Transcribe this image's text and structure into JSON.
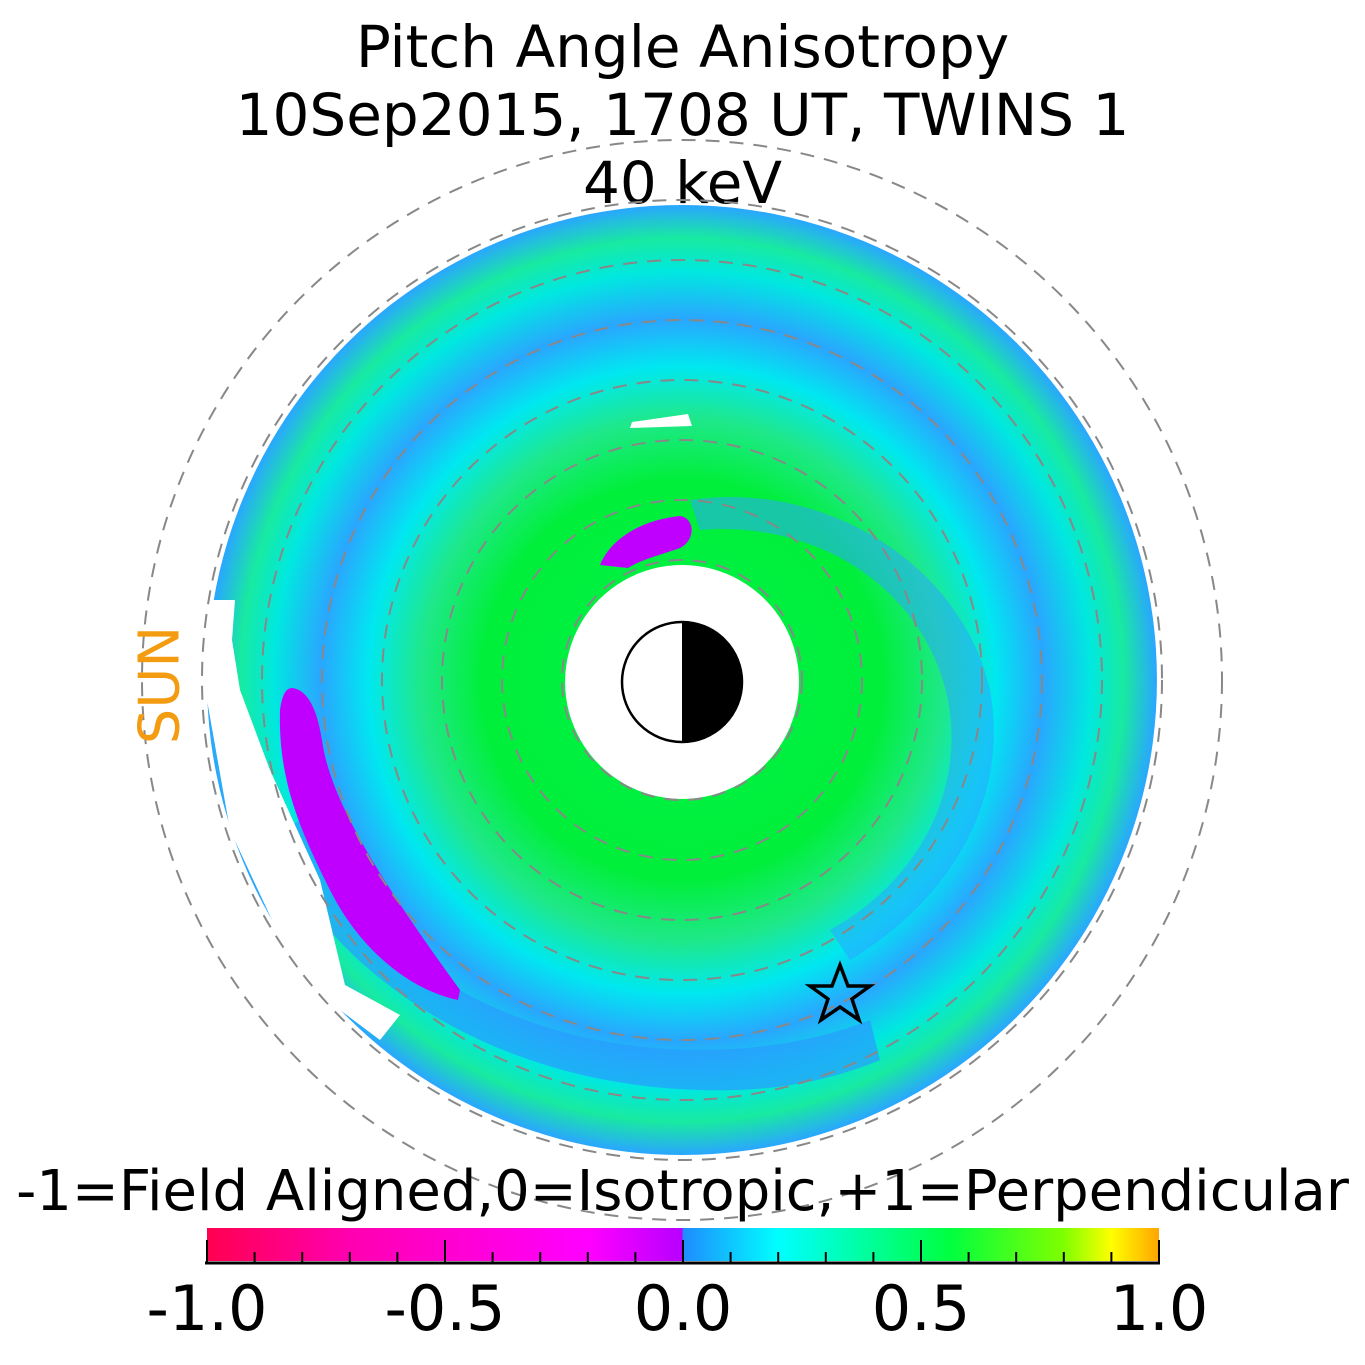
{
  "chart_data": {
    "type": "heatmap",
    "projection": "polar",
    "title_lines": [
      "Pitch Angle Anisotropy",
      "10Sep2015, 1708 UT,  TWINS 1",
      "40 keV"
    ],
    "side_label": "SUN",
    "side_label_color": "#f39c12",
    "rings_dashed": 8,
    "colorbar": {
      "label": "-1=Field Aligned,0=Isotropic,+1=Perpendicular",
      "range": [
        -1.0,
        1.0
      ],
      "ticks": [
        "-1.0",
        "-0.5",
        "0.0",
        "0.5",
        "1.0"
      ],
      "colors": [
        "#ff0050",
        "#ff00b0",
        "#ff00ff",
        "#c000ff",
        "#1e90ff",
        "#00ffff",
        "#00ff40",
        "#7fff00",
        "#ffff00",
        "#ffa500"
      ]
    },
    "annotations": [
      "star marker near lower right of ring"
    ]
  },
  "colors": {
    "ring_blue": "#2aa6ff",
    "ring_cyan": "#00e8f0",
    "ring_green": "#00ef3a",
    "purple": "#c000ff",
    "grid": "#888888"
  }
}
